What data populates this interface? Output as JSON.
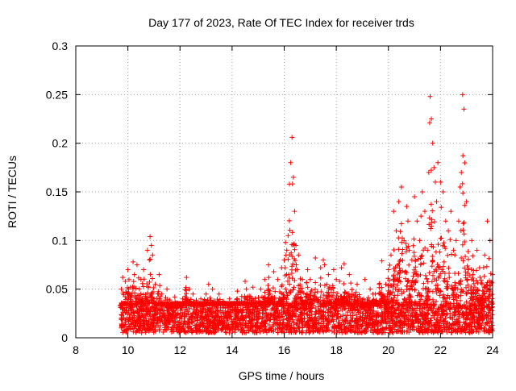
{
  "chart_data": {
    "type": "scatter",
    "title": "Day 177 of 2023, Rate Of TEC Index for receiver trds",
    "xlabel": "GPS time / hours",
    "ylabel": "ROTI / TECUs",
    "xlim": [
      8,
      24
    ],
    "ylim": [
      0,
      0.3
    ],
    "x_ticks": [
      8,
      10,
      12,
      14,
      16,
      18,
      20,
      22,
      24
    ],
    "x_tick_labels": [
      "8",
      "10",
      "12",
      "14",
      "16",
      "18",
      "20",
      "22",
      "24"
    ],
    "y_ticks": [
      0,
      0.05,
      0.1,
      0.15,
      0.2,
      0.25,
      0.3
    ],
    "y_tick_labels": [
      "0",
      "0.05",
      "0.1",
      "0.15",
      "0.2",
      "0.25",
      "0.3"
    ],
    "grid": true,
    "marker": "+",
    "color": "#ff0000",
    "series": [
      {
        "name": "ROTI",
        "x": [
          9.75,
          9.8,
          9.9,
          10.0,
          10.1,
          10.2,
          10.25,
          10.35,
          10.5,
          10.6,
          10.75,
          10.85,
          10.9,
          10.95,
          11.05,
          11.2,
          11.3,
          11.5,
          11.8,
          12.1,
          12.25,
          12.35,
          12.5,
          12.8,
          13.0,
          13.1,
          13.25,
          13.5,
          13.9,
          14.2,
          14.5,
          14.55,
          14.8,
          15.1,
          15.25,
          15.4,
          15.6,
          15.75,
          15.9,
          16.0,
          16.05,
          16.1,
          16.15,
          16.2,
          16.25,
          16.3,
          16.35,
          16.4,
          16.45,
          16.5,
          16.55,
          16.7,
          16.9,
          17.0,
          17.2,
          17.4,
          17.5,
          17.55,
          17.7,
          17.9,
          18.0,
          18.2,
          18.3,
          18.5,
          18.8,
          19.1,
          19.3,
          19.4,
          19.5,
          19.75,
          19.9,
          20.0,
          20.1,
          20.2,
          20.3,
          20.4,
          20.5,
          20.6,
          20.7,
          20.75,
          20.8,
          20.9,
          21.0,
          21.1,
          21.2,
          21.25,
          21.3,
          21.4,
          21.5,
          21.55,
          21.6,
          21.65,
          21.7,
          21.75,
          21.8,
          21.85,
          21.9,
          22.0,
          22.1,
          22.2,
          22.3,
          22.4,
          22.5,
          22.55,
          22.6,
          22.7,
          22.75,
          22.8,
          22.85,
          22.9,
          23.0,
          23.2,
          23.4,
          23.5,
          23.7,
          23.8,
          23.9,
          24.0
        ],
        "values": [
          0.05,
          0.062,
          0.058,
          0.07,
          0.052,
          0.078,
          0.065,
          0.075,
          0.06,
          0.07,
          0.09,
          0.104,
          0.095,
          0.085,
          0.055,
          0.065,
          0.045,
          0.05,
          0.042,
          0.04,
          0.062,
          0.05,
          0.045,
          0.04,
          0.045,
          0.055,
          0.05,
          0.045,
          0.04,
          0.048,
          0.058,
          0.05,
          0.052,
          0.05,
          0.06,
          0.075,
          0.068,
          0.06,
          0.072,
          0.08,
          0.098,
          0.09,
          0.105,
          0.158,
          0.18,
          0.206,
          0.165,
          0.13,
          0.095,
          0.07,
          0.085,
          0.06,
          0.07,
          0.06,
          0.082,
          0.072,
          0.08,
          0.075,
          0.065,
          0.07,
          0.06,
          0.072,
          0.076,
          0.065,
          0.055,
          0.06,
          0.05,
          0.045,
          0.045,
          0.079,
          0.055,
          0.07,
          0.085,
          0.13,
          0.11,
          0.14,
          0.155,
          0.1,
          0.135,
          0.12,
          0.09,
          0.08,
          0.145,
          0.12,
          0.1,
          0.125,
          0.15,
          0.13,
          0.09,
          0.17,
          0.248,
          0.225,
          0.2,
          0.175,
          0.16,
          0.14,
          0.18,
          0.16,
          0.15,
          0.12,
          0.11,
          0.13,
          0.09,
          0.085,
          0.1,
          0.12,
          0.155,
          0.17,
          0.25,
          0.235,
          0.14,
          0.1,
          0.09,
          0.072,
          0.085,
          0.12,
          0.1,
          0.065
        ]
      }
    ],
    "noise_floor": {
      "x_start": 9.7,
      "x_end": 24.0,
      "min": 0.005,
      "max": 0.035
    }
  }
}
